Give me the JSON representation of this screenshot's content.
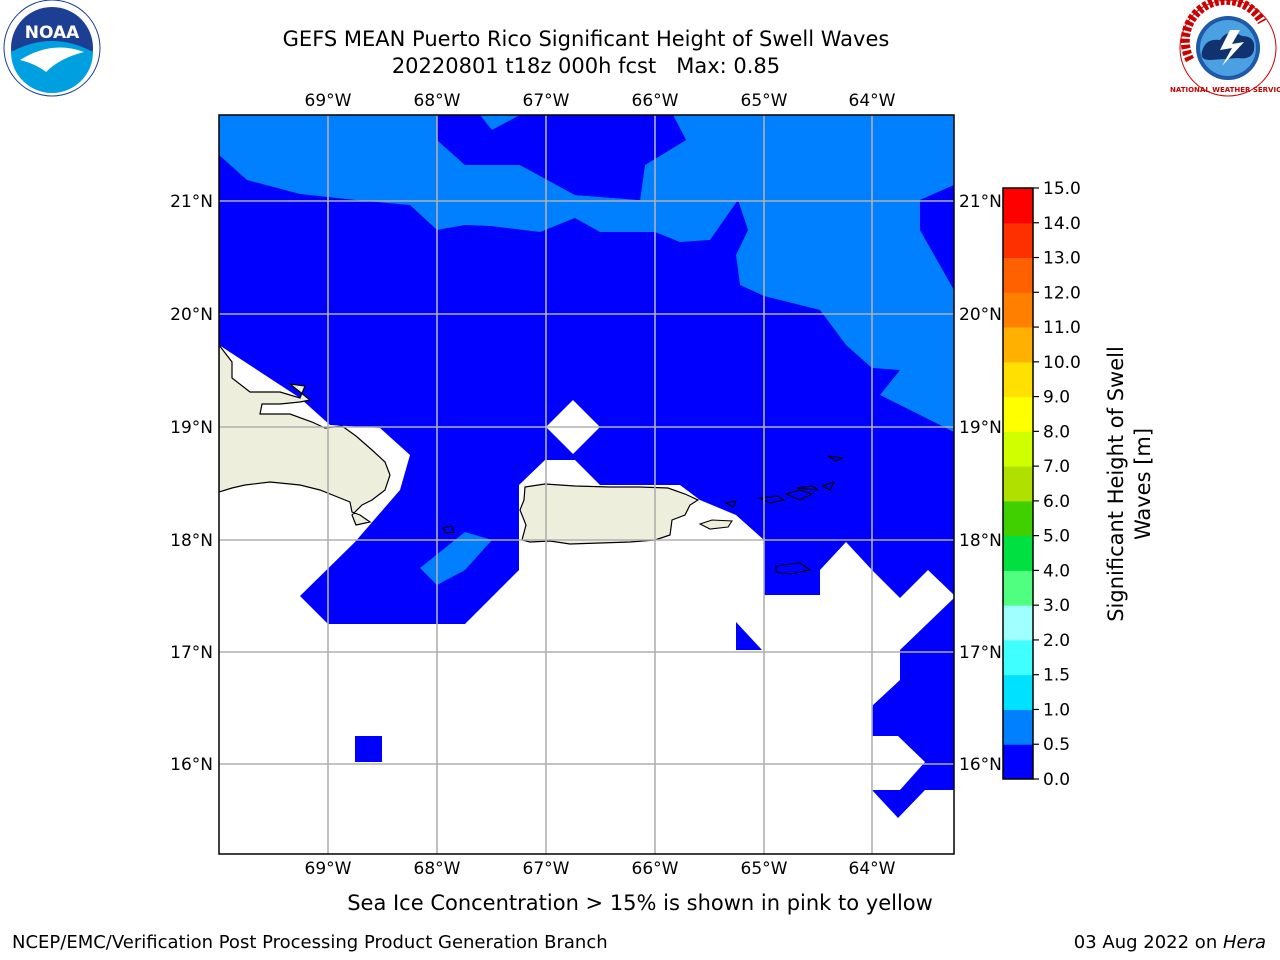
{
  "header": {
    "title_line1": "GEFS MEAN Puerto Rico Significant Height of Swell Waves",
    "title_line2": "20220801 t18z 000h fcst   Max: 0.85"
  },
  "map": {
    "lon_labels": [
      "69°W",
      "68°W",
      "67°W",
      "66°W",
      "65°W",
      "64°W"
    ],
    "lat_labels": [
      "21°N",
      "20°N",
      "19°N",
      "18°N",
      "17°N",
      "16°N"
    ],
    "colors": {
      "level_0_0.5": "#0000ff",
      "level_0.5_1.0": "#0080ff",
      "land": "#eeeedc",
      "no_data": "#ffffff",
      "grid": "#b0b0b0"
    }
  },
  "colorbar": {
    "label": "Significant Height of Swell Waves [m]",
    "label_line1": "Significant Height of Swell",
    "label_line2": "Waves [m]",
    "ticks": [
      "0.0",
      "0.5",
      "1.0",
      "1.5",
      "2.0",
      "3.0",
      "4.0",
      "5.0",
      "6.0",
      "7.0",
      "8.0",
      "9.0",
      "10.0",
      "11.0",
      "12.0",
      "13.0",
      "14.0",
      "15.0"
    ],
    "colors": [
      "#0000ff",
      "#0080ff",
      "#00e0ff",
      "#40ffff",
      "#a0ffff",
      "#50ff80",
      "#00e040",
      "#40d000",
      "#b0e000",
      "#d0ff00",
      "#ffff00",
      "#ffe000",
      "#ffb000",
      "#ff8000",
      "#ff6000",
      "#ff3000",
      "#ff0000"
    ]
  },
  "note": "Sea Ice Concentration > 15% is shown in pink to yellow",
  "footer": {
    "left": "NCEP/EMC/Verification Post Processing Product Generation Branch",
    "right_prefix": "03 Aug 2022 on ",
    "right_italic": "Hera"
  },
  "logos": {
    "left": "NOAA",
    "right": "NATIONAL WEATHER SERVICE"
  }
}
